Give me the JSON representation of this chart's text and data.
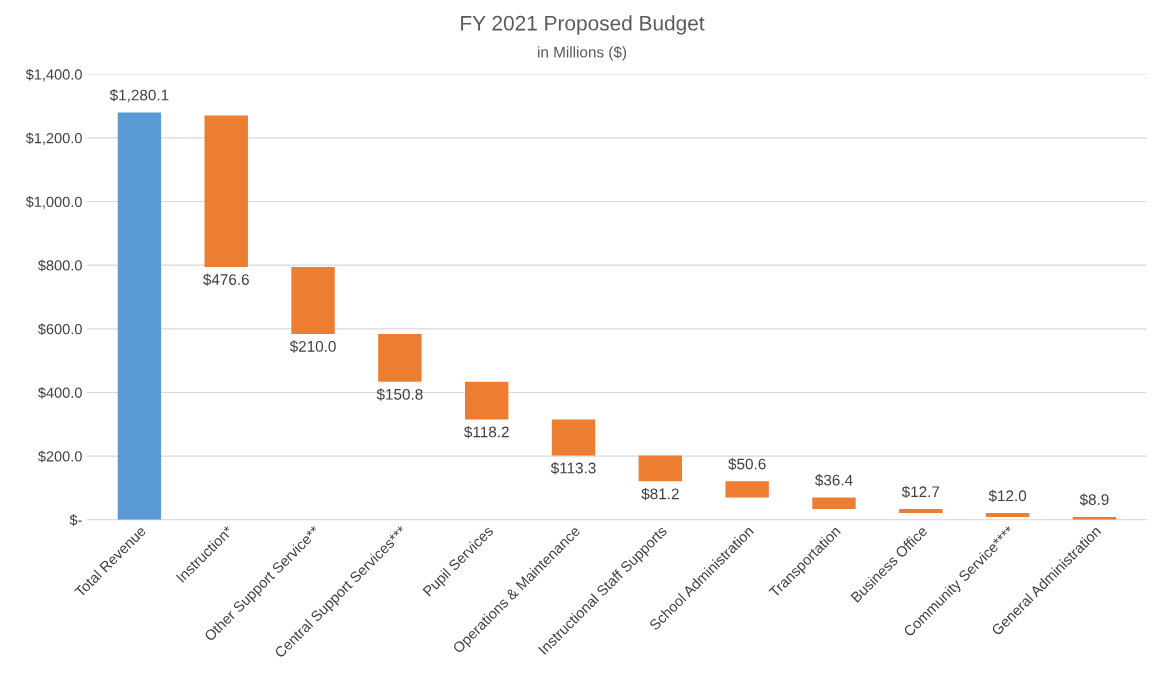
{
  "chart_data": {
    "type": "bar",
    "title": "FY 2021 Proposed Budget",
    "subtitle": "in Millions ($)",
    "categories": [
      "Total Revenue",
      "Instruction*",
      "Other Support Service**",
      "Central Support Services***",
      "Pupil Services",
      "Operations & Maintenance",
      "Instructional Staff Supports",
      "School Administration",
      "Transportation",
      "Business Office",
      "Community Service****",
      "General Administration"
    ],
    "values": [
      1280.1,
      476.6,
      210.0,
      150.8,
      118.2,
      113.3,
      81.2,
      50.6,
      36.4,
      12.7,
      12.0,
      8.9
    ],
    "base": [
      0,
      794.1,
      584.1,
      433.3,
      315.1,
      201.8,
      120.6,
      70.0,
      33.6,
      20.9,
      8.9,
      0
    ],
    "value_labels": [
      "$1,280.1",
      "$476.6",
      "$210.0",
      "$150.8",
      "$118.2",
      "$113.3",
      "$81.2",
      "$50.6",
      "$36.4",
      "$12.7",
      "$12.0",
      "$8.9"
    ],
    "colors": [
      "#5b9bd5",
      "#ed7d31",
      "#ed7d31",
      "#ed7d31",
      "#ed7d31",
      "#ed7d31",
      "#ed7d31",
      "#ed7d31",
      "#ed7d31",
      "#ed7d31",
      "#ed7d31",
      "#ed7d31"
    ],
    "ylim": [
      0,
      1400
    ],
    "yticks": [
      {
        "value": 0,
        "label": "$-"
      },
      {
        "value": 200,
        "label": "$200.0"
      },
      {
        "value": 400,
        "label": "$400.0"
      },
      {
        "value": 600,
        "label": "$600.0"
      },
      {
        "value": 800,
        "label": "$800.0"
      },
      {
        "value": 1000,
        "label": "$1,000.0"
      },
      {
        "value": 1200,
        "label": "$1,200.0"
      },
      {
        "value": 1400,
        "label": "$1,400.0"
      }
    ],
    "grid": "y",
    "legend": false
  }
}
